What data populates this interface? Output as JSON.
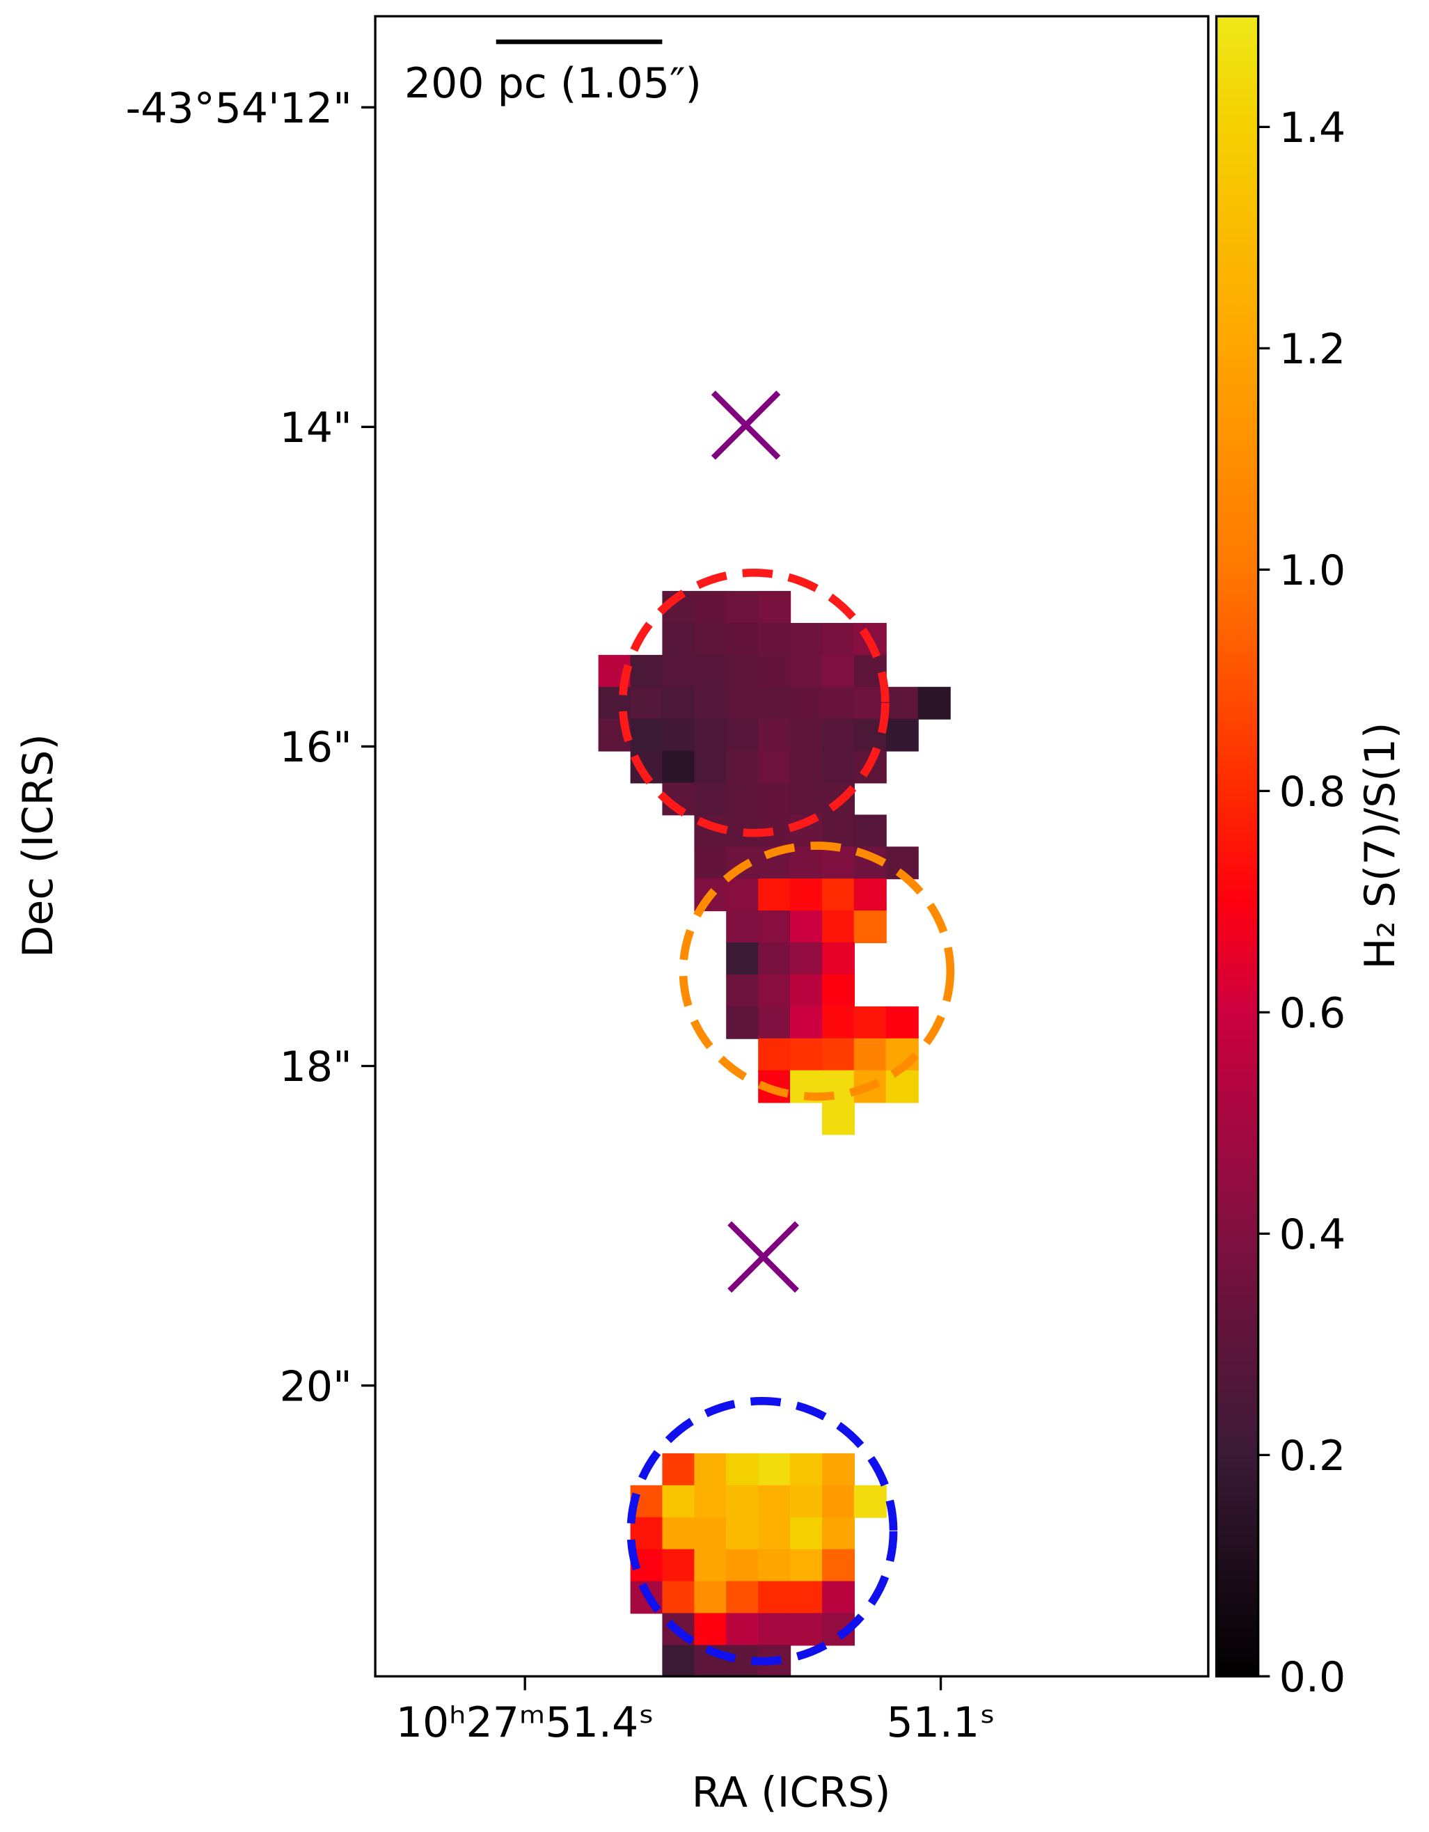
{
  "chart_data": {
    "type": "heatmap",
    "x": [
      51.3355,
      51.3124,
      51.2894,
      51.2663,
      51.2433,
      51.2202,
      51.1972,
      51.1741,
      51.1511,
      51.128,
      51.1049
    ],
    "y": [
      15.127,
      15.327,
      15.527,
      15.727,
      15.927,
      16.127,
      16.327,
      16.527,
      16.727,
      16.927,
      17.127,
      17.327,
      17.527,
      17.727,
      17.927,
      18.127,
      18.327,
      20.524,
      20.724,
      20.924,
      21.124,
      21.324,
      21.524,
      21.724
    ],
    "values": [
      [
        null,
        null,
        0.3,
        0.32,
        0.35,
        0.38,
        null,
        null,
        null,
        null,
        null
      ],
      [
        null,
        null,
        0.28,
        0.3,
        0.32,
        0.33,
        0.35,
        0.38,
        0.42,
        null,
        null
      ],
      [
        0.55,
        0.25,
        0.28,
        0.28,
        0.3,
        0.32,
        0.35,
        0.4,
        0.3,
        null,
        null
      ],
      [
        0.25,
        0.27,
        0.25,
        0.27,
        0.3,
        0.3,
        0.32,
        0.33,
        0.35,
        0.3,
        0.15
      ],
      [
        0.3,
        0.2,
        0.22,
        0.25,
        0.28,
        0.33,
        0.3,
        0.28,
        0.25,
        0.18,
        null
      ],
      [
        null,
        0.22,
        0.15,
        0.25,
        0.3,
        0.35,
        0.3,
        0.28,
        0.3,
        null,
        null
      ],
      [
        null,
        null,
        0.3,
        0.28,
        0.3,
        0.32,
        0.3,
        0.3,
        null,
        null,
        null
      ],
      [
        null,
        null,
        null,
        0.3,
        0.3,
        0.32,
        0.33,
        0.3,
        0.28,
        null,
        null
      ],
      [
        null,
        null,
        null,
        0.32,
        0.35,
        0.35,
        0.38,
        0.4,
        0.35,
        0.3,
        null
      ],
      [
        null,
        null,
        null,
        0.4,
        0.42,
        0.75,
        0.72,
        0.8,
        0.65,
        null,
        null
      ],
      [
        null,
        null,
        null,
        null,
        0.4,
        0.42,
        0.6,
        0.75,
        0.95,
        null,
        null
      ],
      [
        null,
        null,
        null,
        null,
        0.2,
        0.38,
        0.45,
        0.65,
        null,
        null,
        null
      ],
      [
        null,
        null,
        null,
        null,
        0.35,
        0.42,
        0.55,
        0.7,
        null,
        null,
        null
      ],
      [
        null,
        null,
        null,
        null,
        0.3,
        0.4,
        0.6,
        0.72,
        0.75,
        0.7,
        null
      ],
      [
        null,
        null,
        null,
        null,
        null,
        0.8,
        0.82,
        0.85,
        1.05,
        1.2,
        null
      ],
      [
        null,
        null,
        null,
        null,
        null,
        0.7,
        1.45,
        1.45,
        1.2,
        1.4,
        null
      ],
      [
        null,
        null,
        null,
        null,
        null,
        null,
        null,
        1.45,
        null,
        null,
        null
      ],
      [
        null,
        null,
        0.85,
        1.25,
        1.4,
        1.45,
        1.35,
        1.2,
        null,
        null,
        null
      ],
      [
        null,
        0.9,
        1.35,
        1.25,
        1.3,
        1.25,
        1.3,
        1.15,
        1.45,
        null,
        null
      ],
      [
        null,
        0.75,
        1.2,
        1.2,
        1.3,
        1.25,
        1.4,
        1.2,
        null,
        null,
        null
      ],
      [
        null,
        0.7,
        0.75,
        1.2,
        1.15,
        1.2,
        1.25,
        0.95,
        null,
        null,
        null
      ],
      [
        null,
        0.5,
        0.85,
        1.1,
        0.9,
        0.8,
        0.8,
        0.55,
        null,
        null,
        null
      ],
      [
        null,
        null,
        0.35,
        0.7,
        0.55,
        0.5,
        0.5,
        0.45,
        null,
        null,
        null
      ],
      [
        null,
        null,
        0.2,
        0.3,
        0.3,
        0.35,
        null,
        null,
        null,
        null,
        null
      ]
    ],
    "xlim": [
      51.508,
      50.907
    ],
    "ylim": [
      11.43,
      21.82
    ],
    "xticks": [
      {
        "value": 51.4,
        "label": "10ʰ27ᵐ51.4ˢ"
      },
      {
        "value": 51.1,
        "label": "51.1ˢ"
      }
    ],
    "yticks": [
      {
        "value": 12,
        "label": "-43°54'12\""
      },
      {
        "value": 14,
        "label": "14\""
      },
      {
        "value": 16,
        "label": "16\""
      },
      {
        "value": 18,
        "label": "18\""
      },
      {
        "value": 20,
        "label": "20\""
      }
    ],
    "xlabel": "RA (ICRS)",
    "ylabel": "Dec (ICRS)",
    "scale_bar_label": "200 pc (1.05″)",
    "colorbar": {
      "label": "H₂ S(7)/S(1)",
      "lim": [
        0,
        1.5
      ],
      "ticks": [
        {
          "value": 0,
          "label": "0.0"
        },
        0.2,
        0.4,
        0.6,
        0.8,
        {
          "value": 1,
          "label": "1.0"
        },
        1.2,
        1.4
      ],
      "colormap": [
        [
          0,
          "#000000"
        ],
        [
          0.2,
          "#3a1a35"
        ],
        [
          0.4,
          "#80103f"
        ],
        [
          0.6,
          "#cc0040"
        ],
        [
          0.7,
          "#ff0010"
        ],
        [
          0.8,
          "#ff2a00"
        ],
        [
          1.0,
          "#ff7800"
        ],
        [
          1.2,
          "#ffa500"
        ],
        [
          1.4,
          "#f5d000"
        ],
        [
          1.5,
          "#eee81a"
        ]
      ]
    }
  }
}
